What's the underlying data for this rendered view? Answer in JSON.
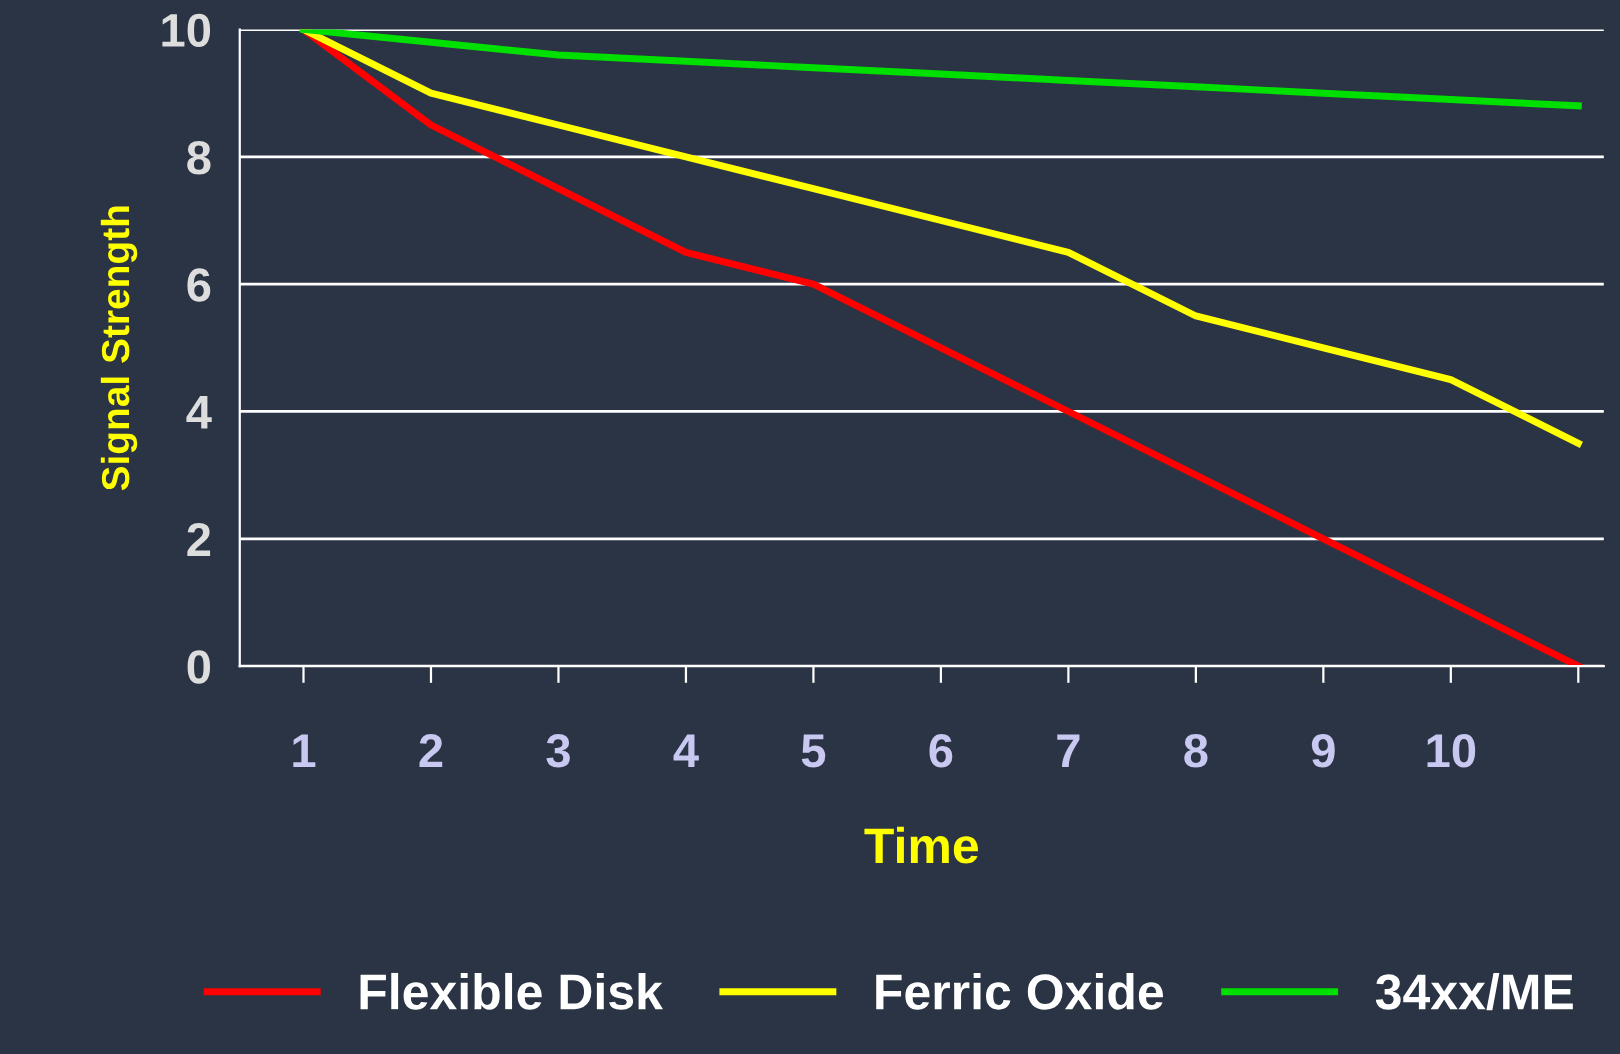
{
  "chart_data": {
    "type": "line",
    "xlabel": "Time",
    "ylabel": "Signal Strength",
    "categories": [
      "1",
      "2",
      "3",
      "4",
      "5",
      "6",
      "7",
      "8",
      "9",
      "10",
      null
    ],
    "series": [
      {
        "name": "Flexible Disk",
        "color": "#ff0000",
        "values": [
          10,
          8.5,
          7.5,
          6.5,
          6,
          5,
          4,
          3,
          2,
          1,
          0
        ]
      },
      {
        "name": "Ferric Oxide",
        "color": "#ffff00",
        "values": [
          10,
          9,
          8.5,
          8,
          7.5,
          7,
          6.5,
          5.5,
          5,
          4.5,
          3.5
        ]
      },
      {
        "name": "34xx/ME",
        "color": "#00e000",
        "values": [
          10,
          9.8,
          9.6,
          9.5,
          9.4,
          9.3,
          9.2,
          9.1,
          9.0,
          8.9,
          8.8
        ]
      }
    ],
    "ylim": [
      0,
      10
    ],
    "yticks": [
      0,
      2,
      4,
      6,
      8,
      10
    ],
    "grid": "y",
    "legend": "bottom",
    "line_style": "solid"
  }
}
